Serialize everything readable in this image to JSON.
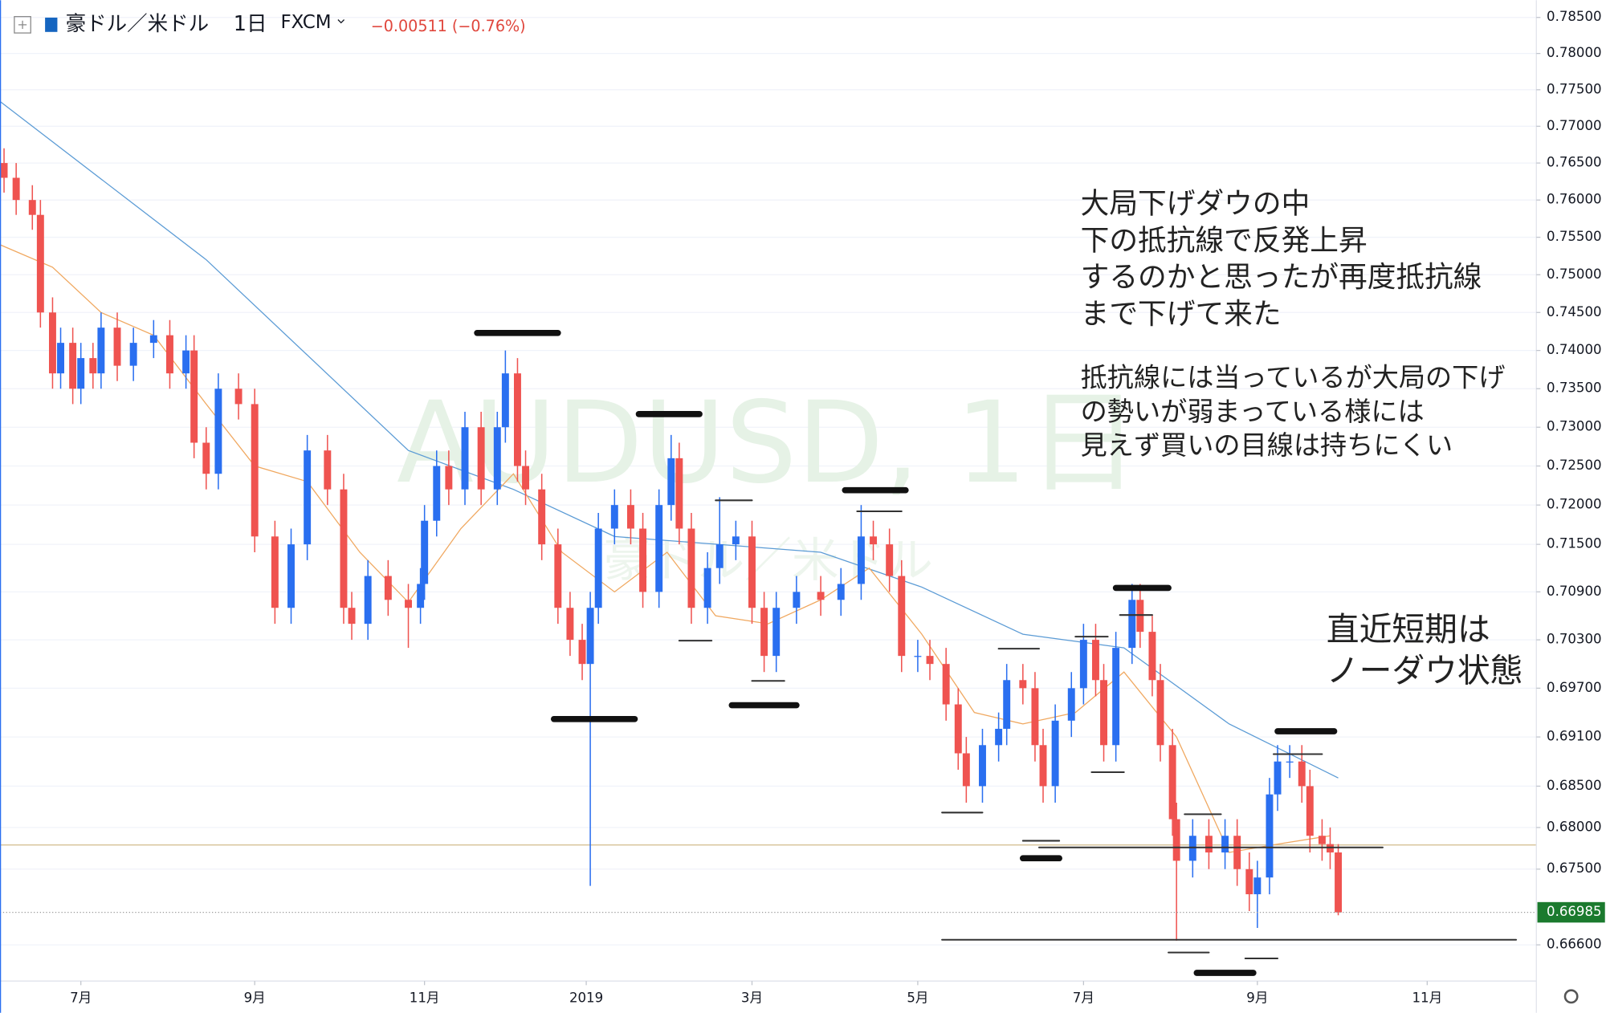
{
  "chart_data": {
    "type": "candlestick",
    "header": {
      "symbol": "豪ドル／米ドル",
      "interval": "1日",
      "source": "FXCM",
      "change": "−0.00511 (−0.76%)"
    },
    "watermark": [
      "AUDUSD, 1日",
      "豪ドル／米ドル"
    ],
    "annotations": [
      {
        "lines": [
          "大局下げダウの中",
          "下の抵抗線で反発上昇",
          "するのかと思ったが再度抵抗線",
          "まで下げて来た"
        ]
      },
      {
        "lines": [
          "抵抗線には当っているが大局の下げ",
          "の勢いが弱まっている様には",
          "見えず買いの目線は持ちにくい"
        ]
      },
      {
        "lines": [
          "直近短期は",
          "ノーダウ状態"
        ]
      }
    ],
    "log_scale": true,
    "grid": true,
    "up_color": "#2a6ff0",
    "down_color": "#ef5350",
    "xlim": [
      0,
      380
    ],
    "xticks": [
      {
        "value": 20,
        "label": "7月"
      },
      {
        "value": 63,
        "label": "9月"
      },
      {
        "value": 105,
        "label": "11月"
      },
      {
        "value": 145,
        "label": "2019"
      },
      {
        "value": 186,
        "label": "3月"
      },
      {
        "value": 227,
        "label": "5月"
      },
      {
        "value": 268,
        "label": "7月"
      },
      {
        "value": 311,
        "label": "9月"
      },
      {
        "value": 353,
        "label": "11月"
      }
    ],
    "ylim": [
      0.6621,
      0.7874
    ],
    "yticks": [
      {
        "value": 0.785,
        "label": "0.78500"
      },
      {
        "value": 0.78,
        "label": "0.78000"
      },
      {
        "value": 0.775,
        "label": "0.77500"
      },
      {
        "value": 0.77,
        "label": "0.77000"
      },
      {
        "value": 0.765,
        "label": "0.76500"
      },
      {
        "value": 0.76,
        "label": "0.76000"
      },
      {
        "value": 0.755,
        "label": "0.75500"
      },
      {
        "value": 0.75,
        "label": "0.75000"
      },
      {
        "value": 0.745,
        "label": "0.74500"
      },
      {
        "value": 0.74,
        "label": "0.74000"
      },
      {
        "value": 0.735,
        "label": "0.73500"
      },
      {
        "value": 0.73,
        "label": "0.73000"
      },
      {
        "value": 0.725,
        "label": "0.72500"
      },
      {
        "value": 0.72,
        "label": "0.72000"
      },
      {
        "value": 0.715,
        "label": "0.71500"
      },
      {
        "value": 0.709,
        "label": "0.70900"
      },
      {
        "value": 0.703,
        "label": "0.70300"
      },
      {
        "value": 0.697,
        "label": "0.69700"
      },
      {
        "value": 0.691,
        "label": "0.69100"
      },
      {
        "value": 0.685,
        "label": "0.68500"
      },
      {
        "value": 0.68,
        "label": "0.68000"
      },
      {
        "value": 0.675,
        "label": "0.67500"
      },
      {
        "value": 0.666,
        "label": "0.66600"
      }
    ],
    "last_price": 0.66985,
    "x": [
      1,
      4,
      8,
      10,
      13,
      15,
      18,
      20,
      23,
      25,
      29,
      33,
      38,
      42,
      46,
      48,
      51,
      54,
      59,
      63,
      68,
      72,
      76,
      81,
      85,
      87,
      91,
      96,
      101,
      104,
      105,
      108,
      111,
      115,
      119,
      123,
      125,
      128,
      130,
      134,
      138,
      141,
      144,
      146,
      148,
      152,
      156,
      159,
      163,
      166,
      168,
      171,
      175,
      178,
      182,
      186,
      189,
      192,
      197,
      203,
      208,
      213,
      216,
      220,
      223,
      227,
      230,
      234,
      237,
      239,
      243,
      247,
      249,
      253,
      256,
      258,
      261,
      265,
      268,
      271,
      273,
      276,
      280,
      282,
      285,
      287,
      290,
      291,
      295,
      299,
      303,
      306,
      309,
      311,
      314,
      316,
      319,
      322,
      324,
      327,
      329,
      331
    ],
    "candles": [
      [
        0.765,
        0.767,
        0.761,
        0.763
      ],
      [
        0.763,
        0.765,
        0.758,
        0.76
      ],
      [
        0.76,
        0.762,
        0.756,
        0.758
      ],
      [
        0.758,
        0.76,
        0.743,
        0.745
      ],
      [
        0.745,
        0.747,
        0.735,
        0.737
      ],
      [
        0.737,
        0.743,
        0.735,
        0.741
      ],
      [
        0.741,
        0.743,
        0.733,
        0.735
      ],
      [
        0.735,
        0.741,
        0.733,
        0.739
      ],
      [
        0.739,
        0.741,
        0.735,
        0.737
      ],
      [
        0.737,
        0.745,
        0.735,
        0.743
      ],
      [
        0.743,
        0.745,
        0.736,
        0.738
      ],
      [
        0.738,
        0.743,
        0.736,
        0.741
      ],
      [
        0.741,
        0.744,
        0.739,
        0.742
      ],
      [
        0.742,
        0.744,
        0.735,
        0.737
      ],
      [
        0.737,
        0.742,
        0.735,
        0.74
      ],
      [
        0.74,
        0.742,
        0.726,
        0.728
      ],
      [
        0.728,
        0.73,
        0.722,
        0.724
      ],
      [
        0.724,
        0.737,
        0.722,
        0.735
      ],
      [
        0.735,
        0.737,
        0.731,
        0.733
      ],
      [
        0.733,
        0.735,
        0.714,
        0.716
      ],
      [
        0.716,
        0.718,
        0.705,
        0.707
      ],
      [
        0.707,
        0.717,
        0.705,
        0.715
      ],
      [
        0.715,
        0.729,
        0.713,
        0.727
      ],
      [
        0.727,
        0.729,
        0.72,
        0.722
      ],
      [
        0.722,
        0.724,
        0.705,
        0.707
      ],
      [
        0.707,
        0.709,
        0.703,
        0.705
      ],
      [
        0.705,
        0.713,
        0.703,
        0.711
      ],
      [
        0.711,
        0.713,
        0.706,
        0.708
      ],
      [
        0.708,
        0.71,
        0.702,
        0.707
      ],
      [
        0.707,
        0.712,
        0.705,
        0.71
      ],
      [
        0.71,
        0.72,
        0.708,
        0.718
      ],
      [
        0.718,
        0.727,
        0.716,
        0.725
      ],
      [
        0.725,
        0.727,
        0.72,
        0.722
      ],
      [
        0.722,
        0.732,
        0.72,
        0.73
      ],
      [
        0.73,
        0.732,
        0.72,
        0.722
      ],
      [
        0.722,
        0.732,
        0.72,
        0.73
      ],
      [
        0.73,
        0.74,
        0.728,
        0.737
      ],
      [
        0.737,
        0.739,
        0.723,
        0.725
      ],
      [
        0.725,
        0.727,
        0.72,
        0.722
      ],
      [
        0.722,
        0.724,
        0.713,
        0.715
      ],
      [
        0.715,
        0.717,
        0.705,
        0.707
      ],
      [
        0.707,
        0.709,
        0.701,
        0.703
      ],
      [
        0.703,
        0.705,
        0.698,
        0.7
      ],
      [
        0.7,
        0.709,
        0.673,
        0.707
      ],
      [
        0.707,
        0.719,
        0.705,
        0.717
      ],
      [
        0.717,
        0.722,
        0.715,
        0.72
      ],
      [
        0.72,
        0.722,
        0.715,
        0.717
      ],
      [
        0.717,
        0.719,
        0.707,
        0.709
      ],
      [
        0.709,
        0.722,
        0.707,
        0.72
      ],
      [
        0.72,
        0.729,
        0.718,
        0.726
      ],
      [
        0.726,
        0.728,
        0.715,
        0.717
      ],
      [
        0.717,
        0.719,
        0.705,
        0.707
      ],
      [
        0.707,
        0.714,
        0.705,
        0.712
      ],
      [
        0.712,
        0.721,
        0.71,
        0.715
      ],
      [
        0.715,
        0.718,
        0.713,
        0.716
      ],
      [
        0.716,
        0.718,
        0.705,
        0.707
      ],
      [
        0.707,
        0.709,
        0.699,
        0.701
      ],
      [
        0.701,
        0.709,
        0.699,
        0.707
      ],
      [
        0.707,
        0.711,
        0.705,
        0.709
      ],
      [
        0.709,
        0.711,
        0.706,
        0.708
      ],
      [
        0.708,
        0.712,
        0.706,
        0.71
      ],
      [
        0.71,
        0.72,
        0.708,
        0.716
      ],
      [
        0.716,
        0.718,
        0.713,
        0.715
      ],
      [
        0.715,
        0.717,
        0.709,
        0.711
      ],
      [
        0.711,
        0.713,
        0.699,
        0.701
      ],
      [
        0.701,
        0.703,
        0.699,
        0.701
      ],
      [
        0.701,
        0.703,
        0.698,
        0.7
      ],
      [
        0.7,
        0.702,
        0.693,
        0.695
      ],
      [
        0.695,
        0.697,
        0.687,
        0.689
      ],
      [
        0.689,
        0.691,
        0.683,
        0.685
      ],
      [
        0.685,
        0.692,
        0.683,
        0.69
      ],
      [
        0.69,
        0.694,
        0.688,
        0.692
      ],
      [
        0.692,
        0.7,
        0.69,
        0.698
      ],
      [
        0.698,
        0.7,
        0.695,
        0.697
      ],
      [
        0.697,
        0.699,
        0.688,
        0.69
      ],
      [
        0.69,
        0.692,
        0.683,
        0.685
      ],
      [
        0.685,
        0.695,
        0.683,
        0.693
      ],
      [
        0.693,
        0.699,
        0.691,
        0.697
      ],
      [
        0.697,
        0.705,
        0.695,
        0.703
      ],
      [
        0.703,
        0.705,
        0.696,
        0.698
      ],
      [
        0.698,
        0.7,
        0.688,
        0.69
      ],
      [
        0.69,
        0.704,
        0.688,
        0.702
      ],
      [
        0.702,
        0.71,
        0.7,
        0.708
      ],
      [
        0.708,
        0.71,
        0.702,
        0.704
      ],
      [
        0.704,
        0.706,
        0.696,
        0.698
      ],
      [
        0.698,
        0.7,
        0.688,
        0.69
      ],
      [
        0.69,
        0.692,
        0.679,
        0.681
      ],
      [
        0.681,
        0.683,
        0.6665,
        0.676
      ],
      [
        0.676,
        0.681,
        0.674,
        0.679
      ],
      [
        0.679,
        0.681,
        0.675,
        0.677
      ],
      [
        0.677,
        0.681,
        0.675,
        0.679
      ],
      [
        0.679,
        0.681,
        0.673,
        0.675
      ],
      [
        0.675,
        0.677,
        0.67,
        0.672
      ],
      [
        0.672,
        0.676,
        0.668,
        0.674
      ],
      [
        0.674,
        0.686,
        0.672,
        0.684
      ],
      [
        0.684,
        0.69,
        0.682,
        0.688
      ],
      [
        0.688,
        0.69,
        0.686,
        0.688
      ],
      [
        0.688,
        0.69,
        0.683,
        0.685
      ],
      [
        0.685,
        0.687,
        0.677,
        0.679
      ],
      [
        0.679,
        0.681,
        0.676,
        0.678
      ],
      [
        0.678,
        0.68,
        0.675,
        0.677
      ],
      [
        0.677,
        0.678,
        0.6695,
        0.66985
      ]
    ],
    "series": [
      {
        "color": "#5b9bd5",
        "x": [
          0,
          51,
          101,
          127,
          152,
          203,
          228,
          253,
          278,
          304,
          331
        ],
        "values": [
          0.7734,
          0.752,
          0.727,
          0.722,
          0.716,
          0.714,
          0.7096,
          0.7037,
          0.702,
          0.6926,
          0.686
        ]
      },
      {
        "color": "#f0a860",
        "x": [
          0,
          13,
          25,
          38,
          51,
          63,
          76,
          89,
          101,
          114,
          127,
          139,
          152,
          165,
          177,
          190,
          203,
          215,
          228,
          241,
          253,
          266,
          278,
          291,
          304,
          316,
          329
        ],
        "values": [
          0.754,
          0.751,
          0.745,
          0.742,
          0.733,
          0.725,
          0.723,
          0.714,
          0.7077,
          0.717,
          0.724,
          0.714,
          0.709,
          0.714,
          0.706,
          0.705,
          0.708,
          0.712,
          0.7037,
          0.694,
          0.6926,
          0.694,
          0.699,
          0.691,
          0.677,
          0.678,
          0.679
        ]
      }
    ],
    "levels": [
      {
        "price": 0.7423,
        "from": 118,
        "to": 138,
        "thick": true
      },
      {
        "price": 0.7317,
        "from": 158,
        "to": 173,
        "thick": true
      },
      {
        "price": 0.7206,
        "from": 177,
        "to": 186,
        "thick": false
      },
      {
        "price": 0.7219,
        "from": 209,
        "to": 224,
        "thick": true
      },
      {
        "price": 0.7192,
        "from": 212,
        "to": 223,
        "thick": false
      },
      {
        "price": 0.6932,
        "from": 137,
        "to": 157,
        "thick": true
      },
      {
        "price": 0.7029,
        "from": 168,
        "to": 176,
        "thick": false
      },
      {
        "price": 0.6979,
        "from": 186,
        "to": 194,
        "thick": false
      },
      {
        "price": 0.6949,
        "from": 181,
        "to": 197,
        "thick": true
      },
      {
        "price": 0.7095,
        "from": 276,
        "to": 289,
        "thick": true
      },
      {
        "price": 0.7061,
        "from": 277,
        "to": 285,
        "thick": false
      },
      {
        "price": 0.7019,
        "from": 247,
        "to": 257,
        "thick": false
      },
      {
        "price": 0.7034,
        "from": 266,
        "to": 274,
        "thick": false
      },
      {
        "price": 0.6867,
        "from": 270,
        "to": 278,
        "thick": false
      },
      {
        "price": 0.6818,
        "from": 233,
        "to": 243,
        "thick": false
      },
      {
        "price": 0.6784,
        "from": 253,
        "to": 262,
        "thick": false
      },
      {
        "price": 0.6763,
        "from": 253,
        "to": 262,
        "thick": true
      },
      {
        "price": 0.6816,
        "from": 293,
        "to": 302,
        "thick": false
      },
      {
        "price": 0.6917,
        "from": 316,
        "to": 330,
        "thick": true
      },
      {
        "price": 0.6889,
        "from": 315,
        "to": 327,
        "thick": false
      },
      {
        "price": 0.6651,
        "from": 289,
        "to": 299,
        "thick": false
      },
      {
        "price": 0.6644,
        "from": 308,
        "to": 316,
        "thick": false
      },
      {
        "price": 0.6627,
        "from": 296,
        "to": 310,
        "thick": true
      },
      {
        "price": 0.6666,
        "from": 233,
        "to": 375,
        "thick": false
      },
      {
        "price": 0.6776,
        "from": 257,
        "to": 342,
        "thick": false
      }
    ],
    "hline": {
      "price": 0.6779,
      "color": "#d8c49a"
    }
  }
}
